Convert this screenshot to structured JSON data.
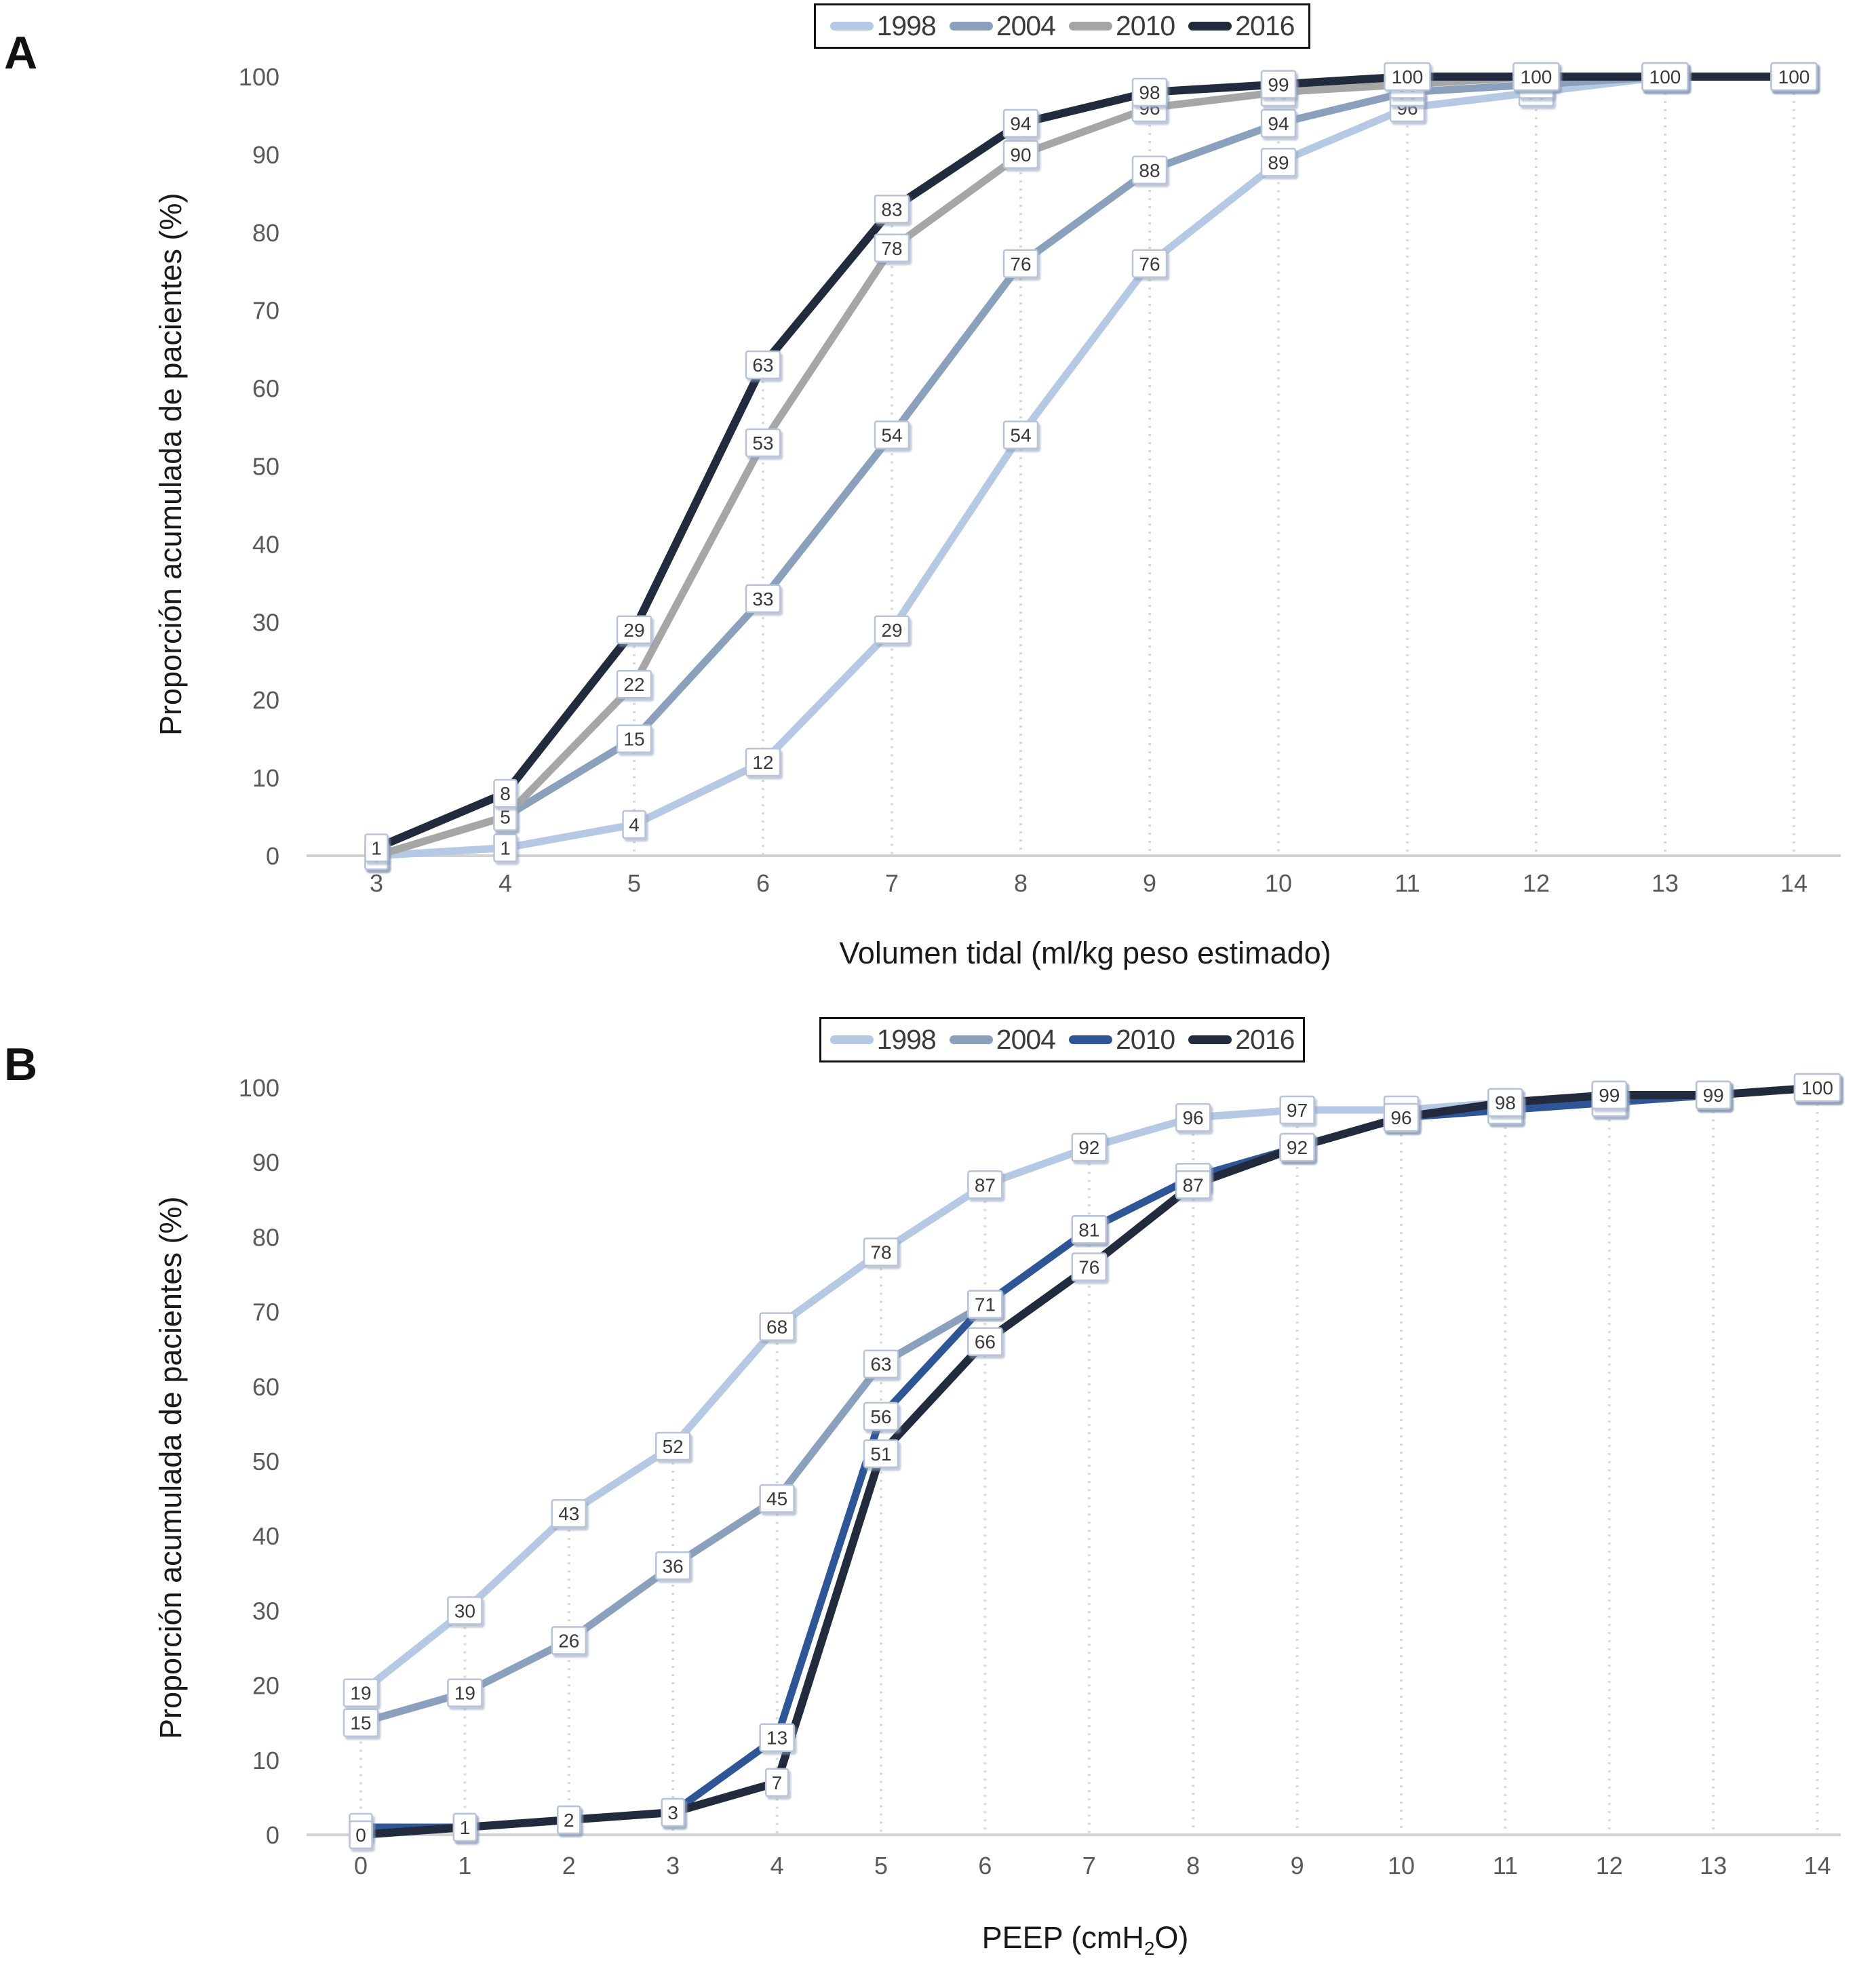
{
  "figure": {
    "y_axis_title": "Proporción acumulada de pacientes (%)",
    "panel_a_letter": "A",
    "panel_b_letter": "B"
  },
  "chart_data": [
    {
      "type": "line",
      "panel": "A",
      "xlabel": "Volumen tidal (ml/kg peso estimado)",
      "ylabel": "Proporción acumulada de pacientes (%)",
      "x": [
        3,
        4,
        5,
        6,
        7,
        8,
        9,
        10,
        11,
        12,
        13,
        14
      ],
      "ylim": [
        0,
        100
      ],
      "yticks": [
        0,
        10,
        20,
        30,
        40,
        50,
        60,
        70,
        80,
        90,
        100
      ],
      "legend_position": "top-center",
      "grid": "vertical-dotted-drop-lines",
      "data_labels": "boxed values at every point",
      "series": [
        {
          "name": "1998",
          "color": "#b5c9e5",
          "values": [
            0,
            1,
            4,
            12,
            29,
            54,
            76,
            89,
            96,
            98,
            100,
            100
          ]
        },
        {
          "name": "2004",
          "color": "#8aa0bd",
          "values": [
            0,
            5,
            15,
            33,
            54,
            76,
            88,
            94,
            98,
            99,
            100,
            100
          ]
        },
        {
          "name": "2010",
          "color": "#a6a6a6",
          "values": [
            0,
            5,
            22,
            53,
            78,
            90,
            96,
            98,
            99,
            100,
            100,
            100
          ]
        },
        {
          "name": "2016",
          "color": "#212b3d",
          "values": [
            1,
            8,
            29,
            63,
            83,
            94,
            98,
            99,
            100,
            100,
            100,
            100
          ]
        }
      ]
    },
    {
      "type": "line",
      "panel": "B",
      "xlabel": "PEEP (cmH2O)",
      "xlabel_parts": {
        "pre": "PEEP (cmH",
        "sub": "2",
        "post": "O)"
      },
      "ylabel": "Proporción acumulada de pacientes (%)",
      "x": [
        0,
        1,
        2,
        3,
        4,
        5,
        6,
        7,
        8,
        9,
        10,
        11,
        12,
        13,
        14
      ],
      "ylim": [
        0,
        100
      ],
      "yticks": [
        0,
        10,
        20,
        30,
        40,
        50,
        60,
        70,
        80,
        90,
        100
      ],
      "legend_position": "top-center",
      "grid": "vertical-dotted-drop-lines",
      "data_labels": "boxed values at every point",
      "series": [
        {
          "name": "1998",
          "color": "#b5c9e5",
          "values": [
            19,
            30,
            43,
            52,
            68,
            78,
            87,
            92,
            96,
            97,
            97,
            98,
            99,
            99,
            100
          ]
        },
        {
          "name": "2004",
          "color": "#8aa0bd",
          "values": [
            15,
            19,
            26,
            36,
            45,
            63,
            71,
            81,
            88,
            92,
            96,
            97,
            98,
            99,
            100
          ]
        },
        {
          "name": "2010",
          "color": "#2e5596",
          "values": [
            1,
            1,
            2,
            3,
            13,
            56,
            71,
            81,
            88,
            92,
            96,
            97,
            98,
            99,
            100
          ]
        },
        {
          "name": "2016",
          "color": "#212b3d",
          "values": [
            0,
            1,
            2,
            3,
            7,
            51,
            66,
            76,
            87,
            92,
            96,
            98,
            99,
            99,
            100
          ]
        }
      ]
    }
  ]
}
